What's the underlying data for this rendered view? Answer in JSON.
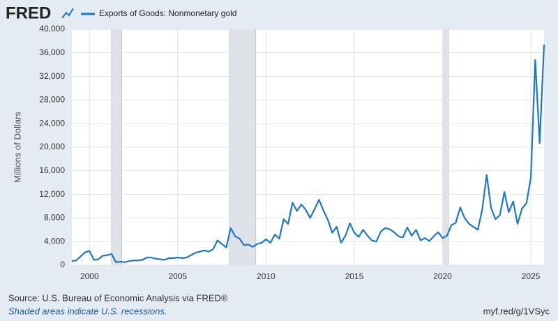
{
  "logo": "FRED",
  "chart_data": {
    "type": "line",
    "y_label": "Millions of Dollars",
    "source": "Source: U.S. Bureau of Economic Analysis via FRED®",
    "note": "Shaded areas indicate U.S. recessions.",
    "link": "myf.red/g/1VSyc",
    "x": [
      1999,
      1999.25,
      1999.5,
      1999.75,
      2000,
      2000.25,
      2000.5,
      2000.75,
      2001,
      2001.25,
      2001.5,
      2001.75,
      2002,
      2002.25,
      2002.5,
      2002.75,
      2003,
      2003.25,
      2003.5,
      2003.75,
      2004,
      2004.25,
      2004.5,
      2004.75,
      2005,
      2005.25,
      2005.5,
      2005.75,
      2006,
      2006.25,
      2006.5,
      2006.75,
      2007,
      2007.25,
      2007.5,
      2007.75,
      2008,
      2008.25,
      2008.5,
      2008.75,
      2009,
      2009.25,
      2009.5,
      2009.75,
      2010,
      2010.25,
      2010.5,
      2010.75,
      2011,
      2011.25,
      2011.5,
      2011.75,
      2012,
      2012.25,
      2012.5,
      2012.75,
      2013,
      2013.25,
      2013.5,
      2013.75,
      2014,
      2014.25,
      2014.5,
      2014.75,
      2015,
      2015.25,
      2015.5,
      2015.75,
      2016,
      2016.25,
      2016.5,
      2016.75,
      2017,
      2017.25,
      2017.5,
      2017.75,
      2018,
      2018.25,
      2018.5,
      2018.75,
      2019,
      2019.25,
      2019.5,
      2019.75,
      2020,
      2020.25,
      2020.5,
      2020.75,
      2021,
      2021.25,
      2021.5,
      2021.75,
      2022,
      2022.25,
      2022.5,
      2022.75,
      2023,
      2023.25,
      2023.5,
      2023.75,
      2024,
      2024.25,
      2024.5,
      2024.75,
      2025,
      2025.25,
      2025.5,
      2025.75
    ],
    "series": [
      {
        "name": "Exports of Goods: Nonmonetary gold",
        "color": "#1f77c9",
        "values": [
          700,
          800,
          1500,
          2200,
          2400,
          900,
          1000,
          1600,
          1700,
          1900,
          500,
          600,
          500,
          700,
          800,
          800,
          900,
          1300,
          1300,
          1100,
          1000,
          900,
          1200,
          1200,
          1300,
          1200,
          1300,
          1700,
          2100,
          2300,
          2500,
          2300,
          2700,
          4200,
          3600,
          3000,
          6300,
          4900,
          4500,
          3400,
          3500,
          3100,
          3600,
          3800,
          4400,
          3800,
          5200,
          4500,
          7800,
          7000,
          10600,
          9200,
          10300,
          9400,
          8000,
          9500,
          11100,
          9300,
          7700,
          5500,
          6500,
          3800,
          5000,
          7100,
          5500,
          4800,
          6000,
          5000,
          4200,
          4000,
          5700,
          6300,
          6100,
          5600,
          4900,
          4700,
          6400,
          5000,
          6000,
          4200,
          4600,
          4100,
          4900,
          5600,
          4600,
          5000,
          6800,
          7200,
          9800,
          8000,
          7000,
          6500,
          6000,
          9500,
          15300,
          9700,
          7800,
          8500,
          12400,
          9000,
          10800,
          7000,
          9600,
          10500,
          14800,
          34800,
          20700,
          37400
        ]
      }
    ],
    "recessions": [
      [
        2001.25,
        2001.83
      ],
      [
        2007.92,
        2009.42
      ],
      [
        2020.08,
        2020.33
      ]
    ],
    "xlim": [
      1999,
      2025.75
    ],
    "xticks": [
      2000,
      2005,
      2010,
      2015,
      2020,
      2025
    ],
    "ylim": [
      0,
      40000
    ],
    "yticks": [
      0,
      {
        "value": 4000,
        "label": "4,000"
      },
      {
        "value": 8000,
        "label": "8,000"
      },
      {
        "value": 12000,
        "label": "12,000"
      },
      {
        "value": 16000,
        "label": "16,000"
      },
      {
        "value": 20000,
        "label": "20,000"
      },
      {
        "value": 24000,
        "label": "24,000"
      },
      {
        "value": 28000,
        "label": "28,000"
      },
      {
        "value": 32000,
        "label": "32,000"
      },
      {
        "value": 36000,
        "label": "36,000"
      },
      {
        "value": 40000,
        "label": "40,000"
      }
    ],
    "grid": true
  }
}
